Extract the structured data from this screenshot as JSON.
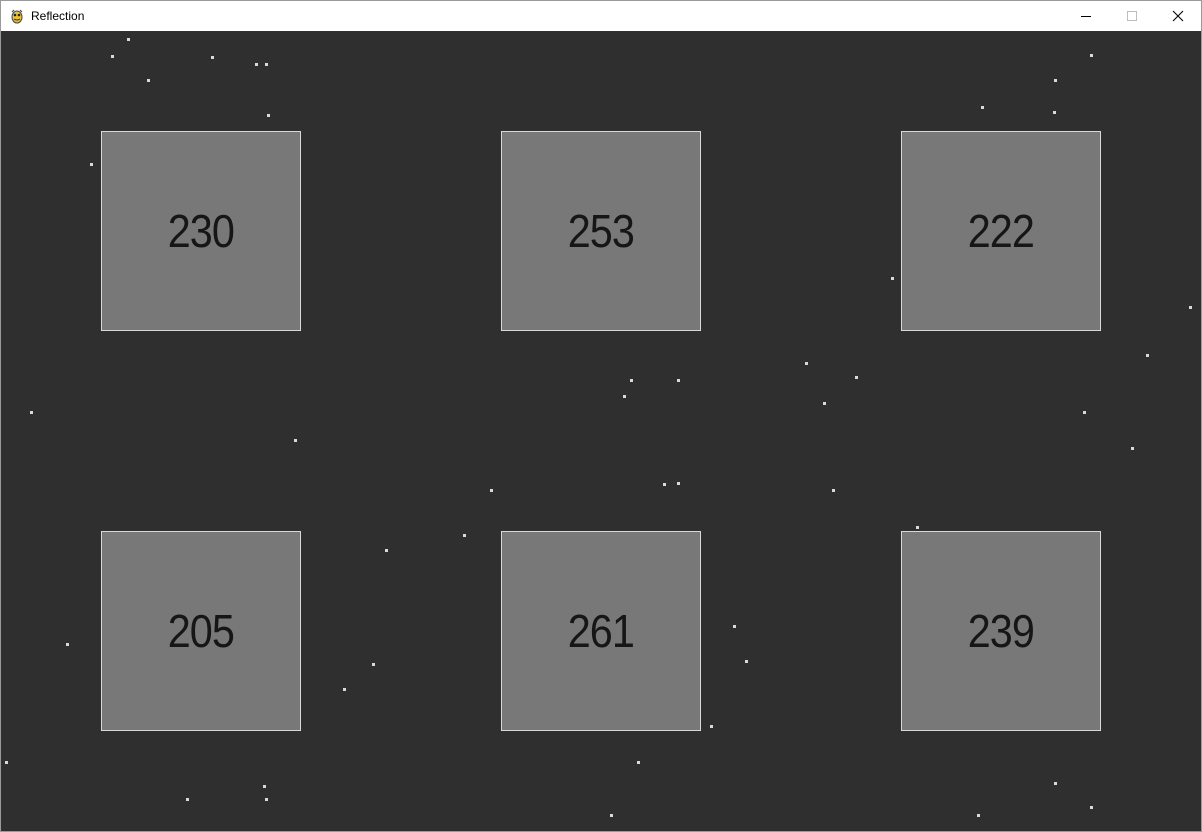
{
  "window": {
    "title": "Reflection",
    "app_icon": "pygame-snake-icon",
    "controls": {
      "minimize_icon": "minimize-icon",
      "maximize_icon": "maximize-icon",
      "close_icon": "close-icon"
    }
  },
  "colors": {
    "background": "#2f2f2f",
    "tile_fill": "#787878",
    "tile_border": "#d8d8d8",
    "tile_text": "#161616",
    "star": "#d9d9d9"
  },
  "tiles": [
    {
      "value": "230"
    },
    {
      "value": "253"
    },
    {
      "value": "222"
    },
    {
      "value": "205"
    },
    {
      "value": "261"
    },
    {
      "value": "239"
    }
  ]
}
